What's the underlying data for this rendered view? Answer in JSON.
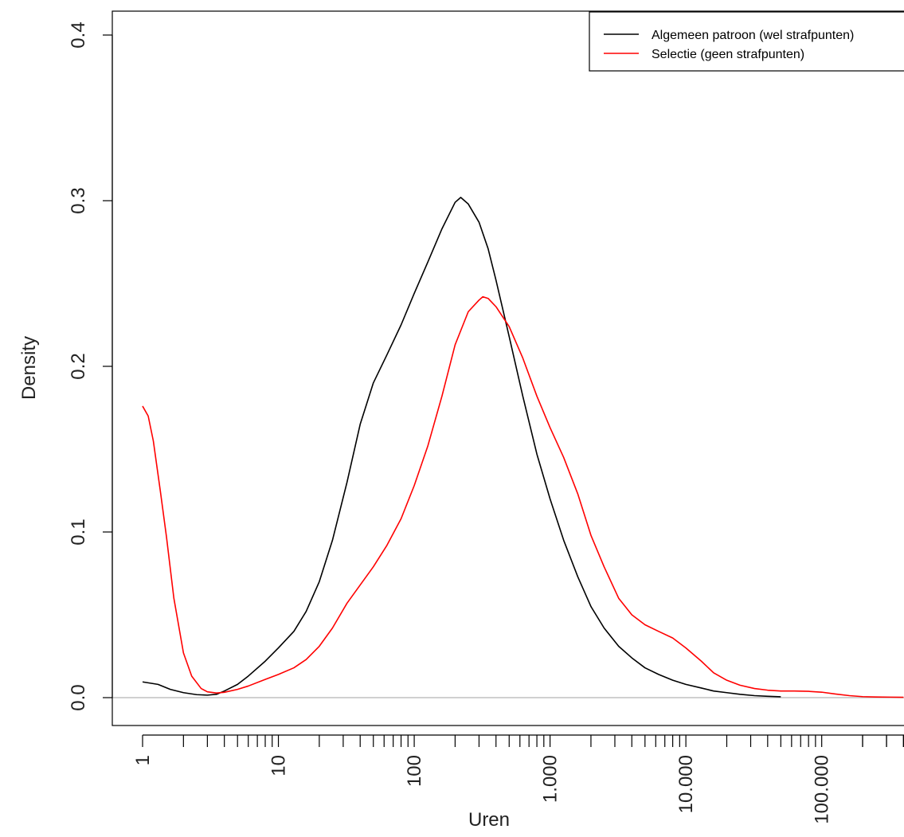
{
  "chart_data": {
    "type": "line",
    "title": "",
    "xlabel": "Uren",
    "ylabel": "Density",
    "x_scale": "log10",
    "xlim": [
      1,
      400000
    ],
    "ylim": [
      0,
      0.4
    ],
    "grid": false,
    "legend_position": "top-right",
    "x_ticks": [
      {
        "value": 1,
        "label": "1"
      },
      {
        "value": 10,
        "label": "10"
      },
      {
        "value": 100,
        "label": "100"
      },
      {
        "value": 1000,
        "label": "1.000"
      },
      {
        "value": 10000,
        "label": "10.000"
      },
      {
        "value": 100000,
        "label": "100.000"
      }
    ],
    "y_ticks": [
      {
        "value": 0.0,
        "label": "0.0"
      },
      {
        "value": 0.1,
        "label": "0.1"
      },
      {
        "value": 0.2,
        "label": "0.2"
      },
      {
        "value": 0.3,
        "label": "0.3"
      },
      {
        "value": 0.4,
        "label": "0.4"
      }
    ],
    "reference_line": {
      "y": 0,
      "color": "#c0c0c0"
    },
    "series": [
      {
        "name": "Algemeen patroon (wel strafpunten)",
        "color": "#000000",
        "points": [
          [
            1,
            0.0095
          ],
          [
            1.3,
            0.008
          ],
          [
            1.6,
            0.005
          ],
          [
            2,
            0.003
          ],
          [
            2.5,
            0.0018
          ],
          [
            3,
            0.0015
          ],
          [
            3.5,
            0.002
          ],
          [
            4,
            0.004
          ],
          [
            5,
            0.008
          ],
          [
            6,
            0.013
          ],
          [
            8,
            0.022
          ],
          [
            10,
            0.03
          ],
          [
            13,
            0.04
          ],
          [
            16,
            0.052
          ],
          [
            20,
            0.07
          ],
          [
            25,
            0.095
          ],
          [
            32,
            0.13
          ],
          [
            40,
            0.165
          ],
          [
            50,
            0.19
          ],
          [
            63,
            0.207
          ],
          [
            80,
            0.225
          ],
          [
            100,
            0.244
          ],
          [
            126,
            0.263
          ],
          [
            160,
            0.283
          ],
          [
            200,
            0.299
          ],
          [
            220,
            0.302
          ],
          [
            250,
            0.298
          ],
          [
            300,
            0.287
          ],
          [
            350,
            0.271
          ],
          [
            400,
            0.252
          ],
          [
            500,
            0.218
          ],
          [
            630,
            0.182
          ],
          [
            800,
            0.147
          ],
          [
            1000,
            0.12
          ],
          [
            1260,
            0.095
          ],
          [
            1600,
            0.073
          ],
          [
            2000,
            0.055
          ],
          [
            2500,
            0.042
          ],
          [
            3200,
            0.031
          ],
          [
            4000,
            0.024
          ],
          [
            5000,
            0.018
          ],
          [
            6300,
            0.014
          ],
          [
            8000,
            0.0105
          ],
          [
            10000,
            0.008
          ],
          [
            13000,
            0.0058
          ],
          [
            16000,
            0.004
          ],
          [
            20000,
            0.003
          ],
          [
            25000,
            0.002
          ],
          [
            32000,
            0.0012
          ],
          [
            40000,
            0.0008
          ],
          [
            50000,
            0.0005
          ]
        ]
      },
      {
        "name": "Selectie (geen strafpunten)",
        "color": "#ff0000",
        "points": [
          [
            1,
            0.176
          ],
          [
            1.1,
            0.17
          ],
          [
            1.2,
            0.155
          ],
          [
            1.35,
            0.125
          ],
          [
            1.5,
            0.097
          ],
          [
            1.7,
            0.06
          ],
          [
            2,
            0.027
          ],
          [
            2.3,
            0.013
          ],
          [
            2.7,
            0.0055
          ],
          [
            3,
            0.0035
          ],
          [
            3.5,
            0.0028
          ],
          [
            4,
            0.0032
          ],
          [
            5,
            0.005
          ],
          [
            6,
            0.007
          ],
          [
            8,
            0.011
          ],
          [
            10,
            0.014
          ],
          [
            13,
            0.018
          ],
          [
            16,
            0.023
          ],
          [
            20,
            0.031
          ],
          [
            25,
            0.042
          ],
          [
            32,
            0.057
          ],
          [
            40,
            0.068
          ],
          [
            50,
            0.079
          ],
          [
            63,
            0.092
          ],
          [
            80,
            0.108
          ],
          [
            100,
            0.128
          ],
          [
            126,
            0.152
          ],
          [
            160,
            0.182
          ],
          [
            200,
            0.213
          ],
          [
            250,
            0.233
          ],
          [
            300,
            0.24
          ],
          [
            320,
            0.242
          ],
          [
            350,
            0.241
          ],
          [
            400,
            0.236
          ],
          [
            500,
            0.224
          ],
          [
            630,
            0.205
          ],
          [
            800,
            0.182
          ],
          [
            1000,
            0.163
          ],
          [
            1260,
            0.145
          ],
          [
            1600,
            0.123
          ],
          [
            2000,
            0.098
          ],
          [
            2500,
            0.079
          ],
          [
            3200,
            0.06
          ],
          [
            4000,
            0.05
          ],
          [
            5000,
            0.044
          ],
          [
            6300,
            0.04
          ],
          [
            8000,
            0.036
          ],
          [
            10000,
            0.03
          ],
          [
            13000,
            0.022
          ],
          [
            16000,
            0.015
          ],
          [
            20000,
            0.0105
          ],
          [
            25000,
            0.0075
          ],
          [
            32000,
            0.0055
          ],
          [
            40000,
            0.0045
          ],
          [
            50000,
            0.004
          ],
          [
            63000,
            0.004
          ],
          [
            80000,
            0.0038
          ],
          [
            100000,
            0.0033
          ],
          [
            126000,
            0.0022
          ],
          [
            160000,
            0.0012
          ],
          [
            200000,
            0.0006
          ],
          [
            250000,
            0.0004
          ],
          [
            320000,
            0.0003
          ],
          [
            400000,
            0.0002
          ]
        ]
      }
    ]
  }
}
